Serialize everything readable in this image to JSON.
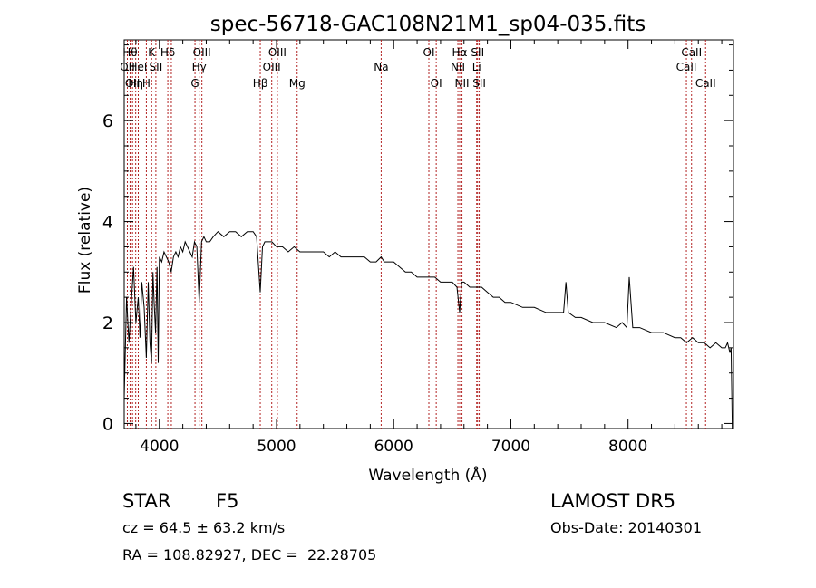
{
  "chart_data": {
    "type": "line",
    "title": "spec-56718-GAC108N21M1_sp04-035.fits",
    "xlabel": "Wavelength (Å)",
    "ylabel": "Flux (relative)",
    "xlim": [
      3700,
      8900
    ],
    "ylim": [
      -0.1,
      7.6
    ],
    "xticks": [
      {
        "v": 4000,
        "t": "4000"
      },
      {
        "v": 5000,
        "t": "5000"
      },
      {
        "v": 6000,
        "t": "6000"
      },
      {
        "v": 7000,
        "t": "7000"
      },
      {
        "v": 8000,
        "t": "8000"
      }
    ],
    "yticks": [
      {
        "v": 0,
        "t": "0"
      },
      {
        "v": 2,
        "t": "2"
      },
      {
        "v": 4,
        "t": "4"
      },
      {
        "v": 6,
        "t": "6"
      }
    ],
    "line_color": "#000000",
    "marker_color": "#b22222",
    "series": [
      {
        "x": [
          3700,
          3720,
          3740,
          3760,
          3780,
          3800,
          3820,
          3835,
          3850,
          3870,
          3889,
          3905,
          3920,
          3933,
          3945,
          3955,
          3968,
          3980,
          3990,
          4000,
          4020,
          4040,
          4060,
          4080,
          4101,
          4120,
          4140,
          4160,
          4180,
          4200,
          4220,
          4240,
          4260,
          4280,
          4300,
          4320,
          4340,
          4360,
          4380,
          4400,
          4430,
          4460,
          4500,
          4550,
          4600,
          4650,
          4700,
          4750,
          4800,
          4830,
          4861,
          4880,
          4900,
          4930,
          4960,
          5000,
          5050,
          5100,
          5150,
          5200,
          5250,
          5300,
          5350,
          5400,
          5450,
          5500,
          5550,
          5600,
          5650,
          5700,
          5750,
          5800,
          5850,
          5893,
          5920,
          5950,
          6000,
          6050,
          6100,
          6150,
          6200,
          6250,
          6300,
          6350,
          6400,
          6450,
          6500,
          6540,
          6563,
          6580,
          6600,
          6650,
          6700,
          6750,
          6800,
          6850,
          6900,
          6950,
          7000,
          7100,
          7200,
          7300,
          7400,
          7450,
          7470,
          7490,
          7550,
          7600,
          7700,
          7800,
          7900,
          7950,
          7990,
          8010,
          8040,
          8100,
          8200,
          8300,
          8400,
          8450,
          8500,
          8550,
          8600,
          8650,
          8700,
          8750,
          8800,
          8830,
          8850,
          8870,
          8880,
          8890
        ],
        "y": [
          0.5,
          2.5,
          1.6,
          2.4,
          3.1,
          2.0,
          2.5,
          1.7,
          2.8,
          2.3,
          1.3,
          2.8,
          1.6,
          1.2,
          3.0,
          2.4,
          1.8,
          3.1,
          1.2,
          3.3,
          3.2,
          3.4,
          3.3,
          3.2,
          3.0,
          3.3,
          3.4,
          3.3,
          3.5,
          3.4,
          3.6,
          3.5,
          3.4,
          3.3,
          3.6,
          3.5,
          2.4,
          3.6,
          3.7,
          3.6,
          3.6,
          3.7,
          3.8,
          3.7,
          3.8,
          3.8,
          3.7,
          3.8,
          3.8,
          3.7,
          2.6,
          3.5,
          3.6,
          3.6,
          3.6,
          3.5,
          3.5,
          3.4,
          3.5,
          3.4,
          3.4,
          3.4,
          3.4,
          3.4,
          3.3,
          3.4,
          3.3,
          3.3,
          3.3,
          3.3,
          3.3,
          3.2,
          3.2,
          3.3,
          3.2,
          3.2,
          3.2,
          3.1,
          3.0,
          3.0,
          2.9,
          2.9,
          2.9,
          2.9,
          2.8,
          2.8,
          2.8,
          2.7,
          2.2,
          2.8,
          2.8,
          2.7,
          2.7,
          2.7,
          2.6,
          2.5,
          2.5,
          2.4,
          2.4,
          2.3,
          2.3,
          2.2,
          2.2,
          2.2,
          2.8,
          2.2,
          2.1,
          2.1,
          2.0,
          2.0,
          1.9,
          2.0,
          1.9,
          2.9,
          1.9,
          1.9,
          1.8,
          1.8,
          1.7,
          1.7,
          1.6,
          1.7,
          1.6,
          1.6,
          1.5,
          1.6,
          1.5,
          1.5,
          1.6,
          1.4,
          1.5,
          -0.1
        ]
      }
    ],
    "line_markers": [
      {
        "x": 3727,
        "label": "OII",
        "row": 2
      },
      {
        "x": 3750,
        "label": "Hθ",
        "row": 1
      },
      {
        "x": 3771,
        "label": "OII",
        "row": 3
      },
      {
        "x": 3798,
        "label": "Hη",
        "row": 3
      },
      {
        "x": 3820,
        "label": "HeI",
        "row": 2
      },
      {
        "x": 3889,
        "label": "H",
        "row": 3
      },
      {
        "x": 3934,
        "label": "K",
        "row": 1
      },
      {
        "x": 3970,
        "label": "SII",
        "row": 2
      },
      {
        "x": 4072,
        "label": "Hδ",
        "row": 1
      },
      {
        "x": 4102,
        "label": "",
        "row": 1
      },
      {
        "x": 4304,
        "label": "G",
        "row": 3
      },
      {
        "x": 4340,
        "label": "Hγ",
        "row": 2
      },
      {
        "x": 4363,
        "label": "OIII",
        "row": 1
      },
      {
        "x": 4861,
        "label": "Hβ",
        "row": 3
      },
      {
        "x": 4959,
        "label": "OIII",
        "row": 2
      },
      {
        "x": 5007,
        "label": "OIII",
        "row": 1
      },
      {
        "x": 5176,
        "label": "Mg",
        "row": 3
      },
      {
        "x": 5893,
        "label": "Na",
        "row": 2
      },
      {
        "x": 6300,
        "label": "OI",
        "row": 1
      },
      {
        "x": 6363,
        "label": "OI",
        "row": 3
      },
      {
        "x": 6548,
        "label": "NII",
        "row": 2
      },
      {
        "x": 6563,
        "label": "Hα",
        "row": 1
      },
      {
        "x": 6583,
        "label": "NII",
        "row": 3
      },
      {
        "x": 6708,
        "label": "Li",
        "row": 2
      },
      {
        "x": 6716,
        "label": "SII",
        "row": 1
      },
      {
        "x": 6730,
        "label": "SII",
        "row": 3
      },
      {
        "x": 8498,
        "label": "CaII",
        "row": 2
      },
      {
        "x": 8542,
        "label": "CaII",
        "row": 1
      },
      {
        "x": 8662,
        "label": "CaII",
        "row": 3
      }
    ]
  },
  "info": {
    "class": "STAR",
    "subclass": "F5",
    "survey": "LAMOST DR5",
    "cz": "cz = 64.5 ± 63.2 km/s",
    "obsdate": "Obs-Date: 20140301",
    "radec": "RA = 108.82927, DEC =  22.28705"
  }
}
